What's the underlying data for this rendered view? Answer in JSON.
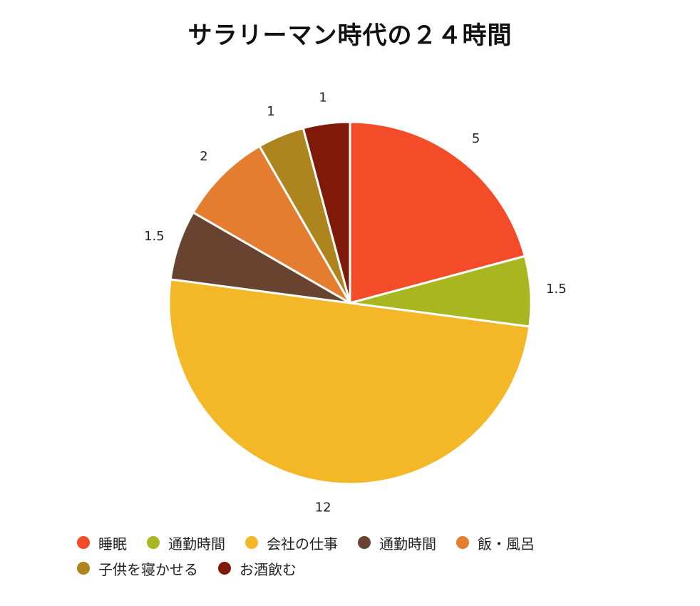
{
  "chart_data": {
    "type": "pie",
    "title": "サラリーマン時代の２４時間",
    "categories": [
      "睡眠",
      "通勤時間",
      "会社の仕事",
      "通勤時間",
      "飯・風呂",
      "子供を寝かせる",
      "お酒飲む"
    ],
    "values": [
      5,
      1.5,
      12,
      1.5,
      2,
      1,
      1
    ],
    "value_labels": [
      "5",
      "1.5",
      "12",
      "1.5",
      "2",
      "1",
      "1"
    ],
    "colors": [
      "#f44b28",
      "#a8b71f",
      "#f4b728",
      "#674330",
      "#e57d30",
      "#ae841f",
      "#7f1a09"
    ],
    "start_angle_deg": 0,
    "direction": "clockwise",
    "legend_position": "bottom"
  }
}
